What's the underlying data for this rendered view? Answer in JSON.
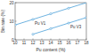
{
  "chart_data": {
    "type": "line",
    "x_label": "Pu content (%)",
    "y_label": "Bin rate (%)",
    "x": [
      10,
      12,
      14,
      16,
      18
    ],
    "series": [
      {
        "name": "Pu V1",
        "color": "#4a9fd8",
        "marker": "circle",
        "values": [
          8,
          11,
          14,
          17,
          20
        ]
      },
      {
        "name": "Pu V3",
        "color": "#4a9fd8",
        "marker": "circle",
        "values": [
          null,
          3,
          6,
          9,
          12
        ]
      }
    ],
    "xlim": [
      10,
      18
    ],
    "xticks": [
      10,
      11,
      12,
      13,
      14,
      15,
      16,
      17,
      18
    ],
    "ylim": [
      0,
      20
    ],
    "yticks": [
      0,
      10,
      20
    ],
    "grid": false
  }
}
